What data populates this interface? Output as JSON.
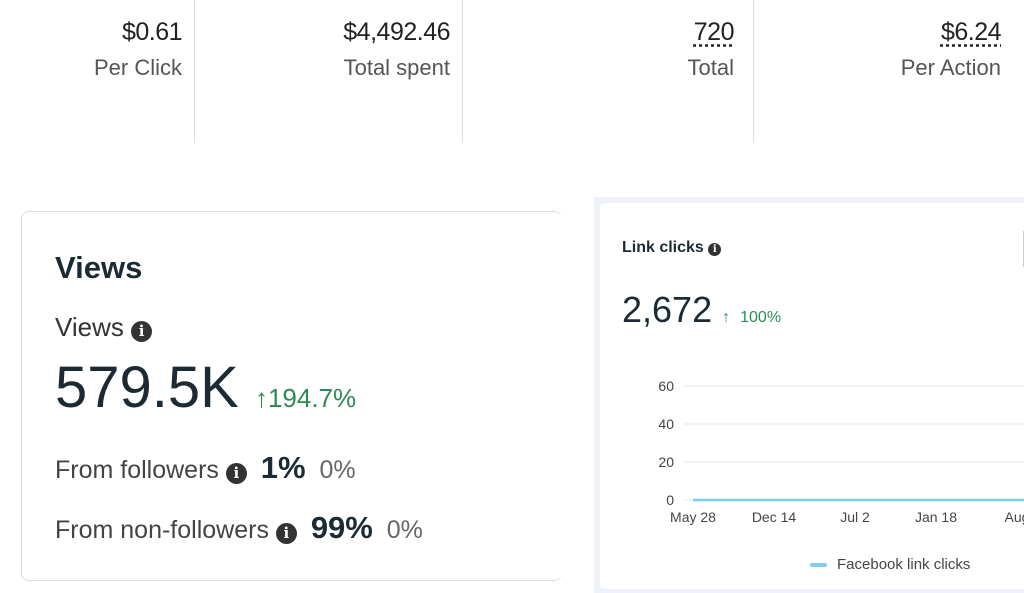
{
  "stats": [
    {
      "value": "$0.61",
      "label": "Per Click"
    },
    {
      "value": "$4,492.46",
      "label": "Total spent"
    },
    {
      "value": "720",
      "label": "Total"
    },
    {
      "value": "$6.24",
      "label": "Per Action"
    }
  ],
  "views_card": {
    "title": "Views",
    "metric_label": "Views",
    "value": "579.5K",
    "change": "194.7%",
    "rows": [
      {
        "label": "From followers",
        "pct": "1%",
        "change": "0%"
      },
      {
        "label": "From non-followers",
        "pct": "99%",
        "change": "0%"
      }
    ]
  },
  "link_card": {
    "title": "Link clicks",
    "value": "2,672",
    "change": "100%"
  },
  "colors": {
    "line": "#7fcdf0",
    "green": "#2e8b57"
  },
  "chart_data": {
    "type": "line",
    "title": "Link clicks",
    "x": [
      "May 28",
      "Dec 14",
      "Jul 2",
      "Jan 18",
      "Aug"
    ],
    "yticks": [
      "0",
      "20",
      "40",
      "60"
    ],
    "ylim": [
      0,
      60
    ],
    "series": [
      {
        "name": "Facebook link clicks",
        "values": [
          0,
          0,
          0,
          0,
          0
        ]
      }
    ],
    "legend": "bottom"
  }
}
